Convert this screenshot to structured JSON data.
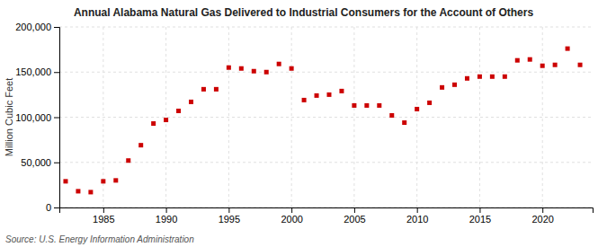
{
  "chart_data": {
    "type": "scatter",
    "title": "Annual Alabama Natural Gas Delivered to Industrial Consumers for the Account of Others",
    "ylabel": "Million Cubic Feet",
    "source": "Source: U.S. Energy Information Administration",
    "x": [
      1982,
      1983,
      1984,
      1985,
      1986,
      1987,
      1988,
      1989,
      1990,
      1991,
      1992,
      1993,
      1994,
      1995,
      1996,
      1997,
      1998,
      1999,
      2000,
      2001,
      2002,
      2003,
      2004,
      2005,
      2006,
      2007,
      2008,
      2009,
      2010,
      2011,
      2012,
      2013,
      2014,
      2015,
      2016,
      2017,
      2018,
      2019,
      2020,
      2021,
      2022,
      2023
    ],
    "values": [
      29000,
      18000,
      17000,
      29000,
      30000,
      52000,
      69000,
      93000,
      97000,
      107000,
      117000,
      131000,
      131000,
      155000,
      154000,
      151000,
      150000,
      159000,
      154000,
      119000,
      124000,
      125000,
      129000,
      113000,
      113000,
      113000,
      102000,
      94000,
      109000,
      116000,
      133000,
      136000,
      143000,
      145000,
      145000,
      145000,
      163000,
      164000,
      157000,
      158000,
      176000,
      158000
    ],
    "color": "#cc0000",
    "marker": "square",
    "xlim": [
      1981.5,
      2024
    ],
    "xticks": [
      1985,
      1990,
      1995,
      2000,
      2005,
      2010,
      2015,
      2020
    ],
    "ylim": [
      0,
      200000
    ],
    "yticks": [
      0,
      {
        "value": 50000,
        "label": "50,000"
      },
      {
        "value": 100000,
        "label": "100,000"
      },
      {
        "value": 150000,
        "label": "150,000"
      },
      {
        "value": 200000,
        "label": "200,000"
      }
    ],
    "grid": true
  }
}
